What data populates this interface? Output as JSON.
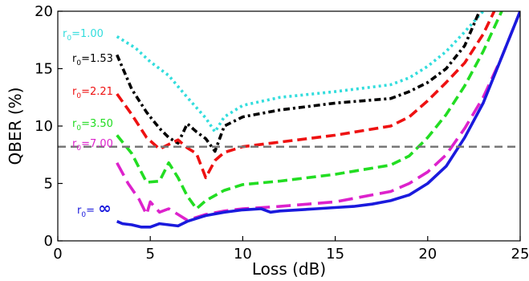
{
  "chart_data": {
    "type": "line",
    "xlabel": "Loss (dB)",
    "ylabel": "QBER (%)",
    "xlim": [
      0,
      25
    ],
    "ylim": [
      0,
      20
    ],
    "xticks": [
      "0",
      "5",
      "10",
      "15",
      "20",
      "25"
    ],
    "yticks": [
      "0",
      "5",
      "10",
      "15",
      "20"
    ],
    "grid": false,
    "reference_line": {
      "y": 8.2,
      "color": "#777777",
      "style": "dashed"
    },
    "series": [
      {
        "name": "r0=1.00",
        "label_prefix": "r",
        "label_sub": "0",
        "label_value": "=1.00",
        "color": "#33dddd",
        "dash": "dotted",
        "x": [
          3.2,
          4.2,
          5.0,
          6.0,
          7.0,
          8.0,
          8.5,
          9.0,
          10.0,
          12.0,
          15.0,
          18.0,
          19.0,
          20.0,
          21.0,
          22.0,
          23.0
        ],
        "y": [
          17.8,
          16.8,
          15.6,
          14.4,
          12.5,
          10.7,
          9.5,
          10.8,
          11.8,
          12.5,
          13.0,
          13.6,
          14.2,
          15.2,
          16.5,
          18.2,
          20.0
        ]
      },
      {
        "name": "r0=1.53",
        "label_prefix": "r",
        "label_sub": "0",
        "label_value": "=1.53",
        "color": "#000000",
        "dash": "dashdot",
        "x": [
          3.2,
          4.0,
          4.8,
          5.5,
          6.0,
          6.5,
          7.0,
          7.5,
          8.0,
          8.5,
          9.0,
          10.0,
          12.0,
          15.0,
          18.0,
          19.0,
          20.0,
          21.0,
          22.0,
          22.8
        ],
        "y": [
          16.2,
          13.2,
          11.2,
          9.8,
          9.0,
          8.5,
          10.2,
          9.5,
          8.9,
          7.8,
          10.0,
          10.8,
          11.4,
          12.0,
          12.4,
          13.0,
          13.8,
          15.0,
          17.0,
          20.0
        ]
      },
      {
        "name": "r0=2.21",
        "label_prefix": "r",
        "label_sub": "0",
        "label_value": "=2.21",
        "color": "#ee1111",
        "dash": "dashed",
        "x": [
          3.2,
          4.0,
          4.8,
          5.5,
          6.0,
          6.5,
          7.0,
          7.5,
          8.0,
          8.5,
          9.0,
          10.0,
          12.0,
          15.0,
          18.0,
          19.0,
          20.0,
          21.0,
          22.0,
          23.0,
          23.6
        ],
        "y": [
          12.8,
          11.0,
          9.0,
          8.0,
          8.4,
          8.8,
          8.1,
          7.6,
          5.5,
          7.0,
          7.7,
          8.2,
          8.6,
          9.2,
          10.0,
          10.8,
          12.2,
          13.8,
          15.5,
          18.0,
          20.0
        ]
      },
      {
        "name": "r0=3.50",
        "label_prefix": "r",
        "label_sub": "0",
        "label_value": "=3.50",
        "color": "#22dd22",
        "dash": "dashed",
        "x": [
          3.2,
          4.0,
          4.8,
          5.5,
          6.0,
          6.5,
          7.0,
          7.5,
          8.0,
          9.0,
          10.0,
          12.0,
          15.0,
          18.0,
          19.0,
          20.0,
          21.0,
          22.0,
          23.0,
          24.0
        ],
        "y": [
          9.2,
          7.6,
          5.1,
          5.2,
          6.8,
          5.5,
          3.9,
          2.8,
          3.5,
          4.4,
          4.9,
          5.2,
          5.8,
          6.6,
          7.4,
          9.0,
          11.0,
          13.5,
          16.5,
          20.0
        ]
      },
      {
        "name": "r0=7.00",
        "label_prefix": "r",
        "label_sub": "0",
        "label_value": "=7.00",
        "color": "#dd22cc",
        "dash": "longdash",
        "x": [
          3.2,
          3.8,
          4.4,
          4.8,
          5.0,
          5.5,
          6.0,
          6.5,
          7.0,
          8.0,
          9.0,
          10.0,
          12.0,
          15.0,
          18.0,
          19.0,
          20.0,
          21.0,
          22.0,
          23.0,
          24.0,
          25.0
        ],
        "y": [
          6.8,
          5.0,
          3.6,
          2.3,
          3.4,
          2.5,
          2.8,
          2.3,
          1.8,
          2.3,
          2.6,
          2.8,
          3.0,
          3.4,
          4.3,
          5.0,
          6.0,
          7.5,
          9.8,
          12.5,
          16.0,
          20.0
        ]
      },
      {
        "name": "r0=∞",
        "label_prefix": "r",
        "label_sub": "0",
        "label_value": "= ∞",
        "color": "#1a1add",
        "dash": "solid",
        "x": [
          3.2,
          3.5,
          4.0,
          4.5,
          5.0,
          5.5,
          6.0,
          6.5,
          7.0,
          8.0,
          9.0,
          10.0,
          11.0,
          11.5,
          12.0,
          13.0,
          14.0,
          15.0,
          16.0,
          17.0,
          18.0,
          19.0,
          20.0,
          21.0,
          22.0,
          23.0,
          24.0,
          25.0
        ],
        "y": [
          1.7,
          1.5,
          1.4,
          1.2,
          1.2,
          1.5,
          1.4,
          1.3,
          1.7,
          2.2,
          2.5,
          2.7,
          2.8,
          2.5,
          2.6,
          2.7,
          2.8,
          2.9,
          3.0,
          3.2,
          3.5,
          4.0,
          5.0,
          6.5,
          9.0,
          12.0,
          16.0,
          20.0
        ]
      }
    ]
  }
}
